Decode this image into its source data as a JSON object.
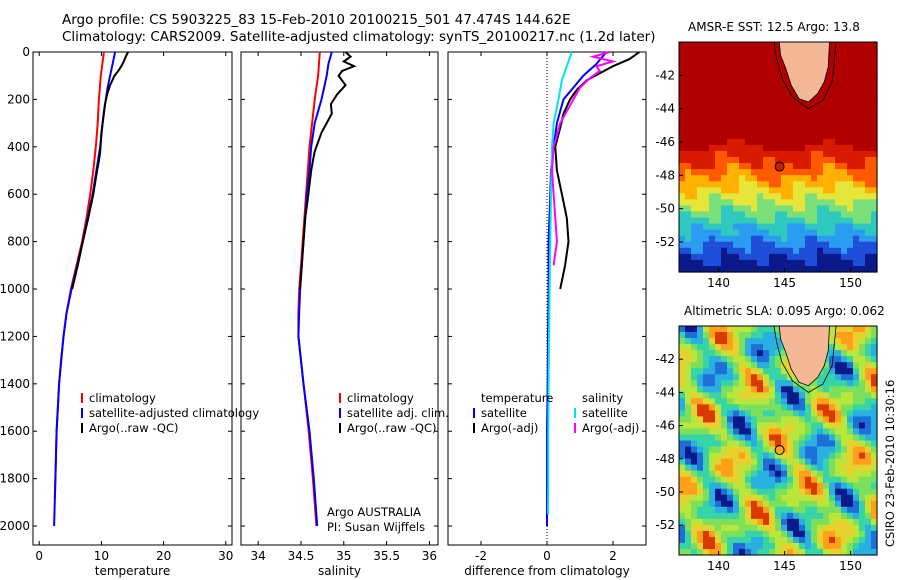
{
  "titles": {
    "line1": "Argo profile: CS 5903225_83 15-Feb-2010 20100215_501 47.474S 144.62E",
    "line2": "Climatology: CARS2009. Satellite-adjusted climatology: synTS_20100217.nc (1.2d later)"
  },
  "credit": "CSIRO 23-Feb-2010 10:30:16",
  "argo_note": [
    "Argo AUSTRALIA",
    "PI: Susan Wijffels"
  ],
  "colors": {
    "climatology": "#ff0000",
    "satellite": "#0000ff",
    "argo": "#000000",
    "sal_satellite": "#00e5ee",
    "sal_argo": "#ff00ff",
    "land": "#f5b896"
  },
  "chart_data": [
    {
      "id": "temp",
      "type": "line",
      "xlabel": "temperature",
      "ylabel": "",
      "xlim": [
        -1,
        31
      ],
      "ylim": [
        2080,
        0
      ],
      "xticks": [
        0,
        10,
        20,
        30
      ],
      "yticks": [
        0,
        200,
        400,
        600,
        800,
        1000,
        1200,
        1400,
        1600,
        1800,
        2000
      ],
      "legend": [
        "climatology",
        "satellite-adjusted climatology",
        "Argo(..raw -QC)"
      ],
      "legend_position": "bottom",
      "series": [
        {
          "name": "climatology",
          "color": "#ff0000",
          "depth": [
            0,
            100,
            200,
            300,
            400,
            500,
            600,
            700,
            800,
            900,
            1000,
            1100,
            1200,
            1300,
            1400,
            1500,
            1600,
            1700,
            1800,
            1880
          ],
          "values": [
            10.4,
            9.9,
            9.6,
            9.4,
            9.1,
            8.7,
            8.2,
            7.6,
            6.9,
            6.0,
            5.1,
            4.4,
            3.9,
            3.5,
            3.2,
            3.0,
            2.8,
            2.7,
            2.6,
            2.5
          ]
        },
        {
          "name": "satellite-adjusted climatology",
          "color": "#0000ff",
          "depth": [
            0,
            50,
            100,
            150,
            200,
            250,
            300,
            350,
            400,
            500,
            600,
            700,
            800,
            900,
            1000,
            1100,
            1200,
            1400,
            1600,
            1800,
            2000
          ],
          "values": [
            12.2,
            11.8,
            11.4,
            11.0,
            10.7,
            10.4,
            10.2,
            10.0,
            9.8,
            9.2,
            8.6,
            7.8,
            7.0,
            6.1,
            5.2,
            4.4,
            3.9,
            3.2,
            2.8,
            2.6,
            2.4
          ]
        },
        {
          "name": "Argo(..raw -QC)",
          "color": "#000000",
          "depth": [
            0,
            20,
            40,
            60,
            80,
            100,
            140,
            180,
            220,
            260,
            300,
            340,
            380,
            420,
            460,
            500,
            600,
            700,
            800,
            900,
            1000
          ],
          "values": [
            14.3,
            13.9,
            13.6,
            13.2,
            12.7,
            12.1,
            11.4,
            10.9,
            10.6,
            10.4,
            10.2,
            10.0,
            9.9,
            9.8,
            9.6,
            9.3,
            8.7,
            7.9,
            7.0,
            6.2,
            5.3
          ]
        }
      ]
    },
    {
      "id": "sal",
      "type": "line",
      "xlabel": "salinity",
      "ylabel": "",
      "xlim": [
        33.8,
        36.1
      ],
      "ylim": [
        2080,
        0
      ],
      "xticks": [
        34,
        34.5,
        35,
        35.5,
        36
      ],
      "legend": [
        "climatology",
        "satellite adj. clim.",
        "Argo(..raw -QC)"
      ],
      "legend_position": "bottom",
      "series": [
        {
          "name": "climatology",
          "color": "#ff0000",
          "depth": [
            0,
            100,
            200,
            300,
            400,
            500,
            600,
            700,
            800,
            900,
            1000,
            1100,
            1200,
            1400,
            1600,
            1800,
            2000
          ],
          "values": [
            34.72,
            34.7,
            34.66,
            34.63,
            34.6,
            34.58,
            34.56,
            34.54,
            34.52,
            34.5,
            34.48,
            34.47,
            34.47,
            34.53,
            34.59,
            34.64,
            34.68
          ]
        },
        {
          "name": "satellite adj. clim.",
          "color": "#0000ff",
          "depth": [
            0,
            50,
            100,
            150,
            200,
            250,
            300,
            400,
            500,
            600,
            700,
            800,
            900,
            1000,
            1100,
            1200,
            1400,
            1600,
            1800,
            2000
          ],
          "values": [
            34.86,
            34.82,
            34.8,
            34.77,
            34.74,
            34.7,
            34.66,
            34.62,
            34.6,
            34.57,
            34.55,
            34.53,
            34.51,
            34.49,
            34.48,
            34.47,
            34.53,
            34.6,
            34.65,
            34.69
          ]
        },
        {
          "name": "Argo(..raw -QC)",
          "color": "#000000",
          "depth": [
            0,
            20,
            40,
            60,
            80,
            100,
            140,
            180,
            220,
            260,
            300,
            340,
            380,
            420,
            460,
            500,
            560,
            620,
            700,
            800,
            900,
            1000
          ],
          "values": [
            35.02,
            35.08,
            35.0,
            35.12,
            34.98,
            34.94,
            35.02,
            34.92,
            34.85,
            34.86,
            34.8,
            34.74,
            34.7,
            34.66,
            34.64,
            34.62,
            34.6,
            34.58,
            34.55,
            34.53,
            34.51,
            34.49
          ]
        }
      ]
    },
    {
      "id": "diff",
      "type": "line",
      "xlabel": "difference from climatology",
      "ylabel": "",
      "xlim": [
        -3,
        3
      ],
      "ylim": [
        2080,
        0
      ],
      "xticks": [
        -2,
        0,
        2
      ],
      "legend_groups": [
        {
          "heading": "temperature",
          "items": [
            "satellite",
            "Argo(-adj)"
          ]
        },
        {
          "heading": "salinity",
          "items": [
            "satellite",
            "Argo(-adj)"
          ]
        }
      ],
      "legend_position": "bottom",
      "series": [
        {
          "name": "temperature satellite",
          "color": "#0000ff",
          "depth": [
            0,
            50,
            100,
            150,
            200,
            300,
            400,
            500,
            600,
            800,
            1000,
            1200,
            1400,
            1600,
            1800,
            2000
          ],
          "values": [
            1.8,
            1.5,
            1.1,
            0.8,
            0.5,
            0.3,
            0.2,
            0.12,
            0.1,
            0.05,
            0.05,
            0.03,
            0.02,
            0.0,
            0.0,
            0.0
          ]
        },
        {
          "name": "temperature Argo(-adj)",
          "color": "#000000",
          "depth": [
            0,
            30,
            60,
            90,
            120,
            160,
            200,
            260,
            320,
            400,
            500,
            600,
            700,
            800,
            900,
            1000
          ],
          "values": [
            2.8,
            2.5,
            2.0,
            1.6,
            1.2,
            0.9,
            0.7,
            0.5,
            0.4,
            0.25,
            0.3,
            0.45,
            0.6,
            0.65,
            0.55,
            0.4
          ]
        },
        {
          "name": "salinity satellite",
          "color": "#00e5ee",
          "depth": [
            0,
            60,
            120,
            200,
            300,
            400,
            600,
            800,
            1000,
            1200,
            1400,
            1600,
            1800,
            1950
          ],
          "values": [
            0.75,
            0.6,
            0.45,
            0.35,
            0.2,
            0.15,
            0.12,
            0.1,
            0.08,
            0.06,
            0.05,
            0.04,
            0.04,
            0.03
          ]
        },
        {
          "name": "salinity Argo(-adj)",
          "color": "#ff00ff",
          "depth": [
            0,
            20,
            40,
            60,
            80,
            110,
            150,
            200,
            250,
            300,
            400,
            500,
            600,
            700,
            800,
            900
          ],
          "values": [
            1.9,
            1.4,
            2.0,
            1.5,
            1.6,
            1.3,
            1.0,
            0.8,
            0.6,
            0.4,
            0.2,
            0.15,
            0.2,
            0.25,
            0.3,
            0.2
          ]
        }
      ]
    },
    {
      "id": "sst_map",
      "type": "heatmap",
      "title": "AMSR-E SST: 12.5 Argo: 13.8",
      "xlim": [
        137,
        152
      ],
      "ylim": [
        -53.8,
        -40
      ],
      "xticks": [
        140,
        145,
        150
      ],
      "yticks": [
        -42,
        -44,
        -46,
        -48,
        -50,
        -52
      ],
      "argo_position": {
        "lon": 144.62,
        "lat": -47.474
      }
    },
    {
      "id": "sla_map",
      "type": "heatmap",
      "title": "Altimetric SLA: 0.095 Argo: 0.062",
      "xlim": [
        137,
        152
      ],
      "ylim": [
        -53.8,
        -40
      ],
      "xticks": [
        140,
        145,
        150
      ],
      "yticks": [
        -42,
        -44,
        -46,
        -48,
        -50,
        -52
      ],
      "argo_position": {
        "lon": 144.62,
        "lat": -47.474
      }
    }
  ]
}
